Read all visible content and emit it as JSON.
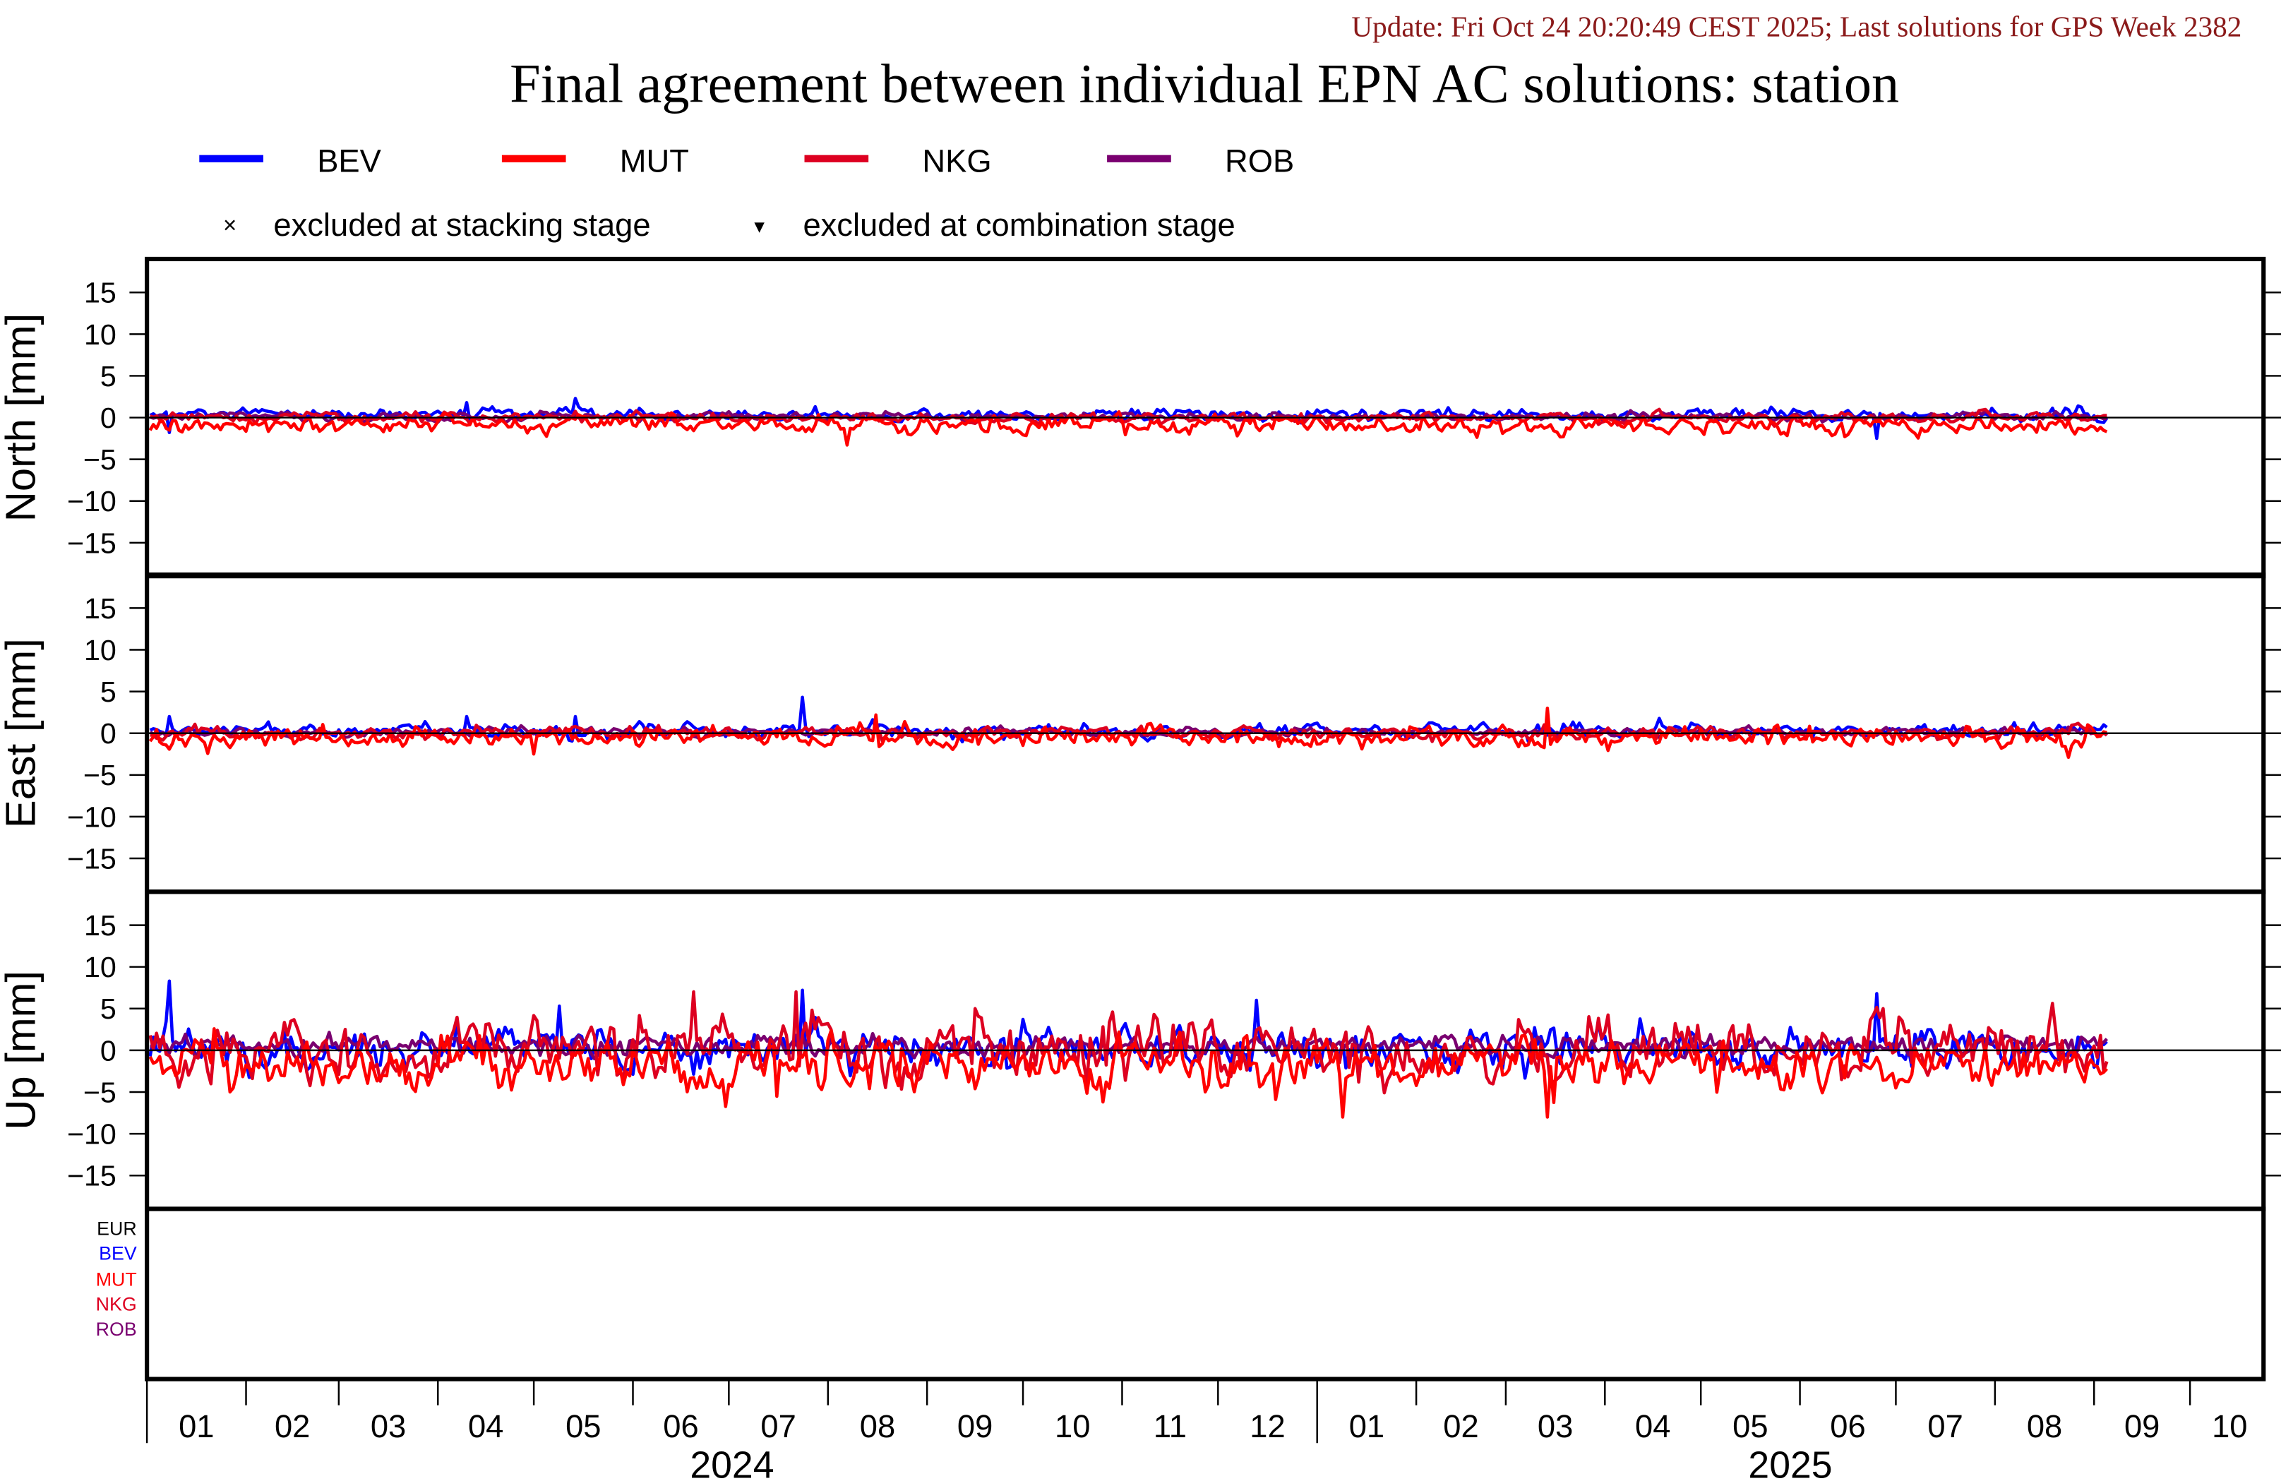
{
  "header": {
    "update_text": "Update: Fri Oct 24 20:20:49 CEST 2025; Last solutions for GPS Week 2382",
    "title": "Final agreement between individual EPN AC solutions: station"
  },
  "legend": {
    "series": [
      {
        "name": "BEV",
        "color": "#0000ff"
      },
      {
        "name": "MUT",
        "color": "#ff0000"
      },
      {
        "name": "NKG",
        "color": "#dd0020"
      },
      {
        "name": "ROB",
        "color": "#7a0070"
      }
    ],
    "markers": [
      {
        "symbol": "×",
        "label": "excluded at stacking stage"
      },
      {
        "symbol": "▾",
        "label": "excluded at combination stage"
      }
    ]
  },
  "bottom_panel": {
    "labels": [
      {
        "text": "EUR",
        "color": "#000000"
      },
      {
        "text": "BEV",
        "color": "#0000ff"
      },
      {
        "text": "MUT",
        "color": "#ff0000"
      },
      {
        "text": "NKG",
        "color": "#dd0020"
      },
      {
        "text": "ROB",
        "color": "#7a0070"
      }
    ]
  },
  "chart_data": {
    "type": "line",
    "title": "Final agreement between individual EPN AC solutions: station",
    "x_range": [
      "2024-01-01",
      "2025-10-24"
    ],
    "data_range": [
      "2024-01-02",
      "2025-09-05"
    ],
    "x_tick_labels": [
      "01",
      "02",
      "03",
      "04",
      "05",
      "06",
      "07",
      "08",
      "09",
      "10",
      "11",
      "12",
      "01",
      "02",
      "03",
      "04",
      "05",
      "06",
      "07",
      "08",
      "09",
      "10"
    ],
    "x_year_labels": [
      "2024",
      "2025"
    ],
    "y_ticks": [
      15,
      10,
      5,
      0,
      -5,
      -10,
      -15
    ],
    "ylim": [
      -19,
      19
    ],
    "grid": false,
    "legend_position": "top-left",
    "panels": [
      {
        "name": "north",
        "ylabel": "North [mm]",
        "series": [
          {
            "name": "BEV",
            "mean": 0.3,
            "std": 0.35,
            "spikes": [
              [
                100,
                1.8
              ],
              [
                134,
                2.3
              ],
              [
                541,
                -2.5
              ],
              [
                7,
                -1.8
              ]
            ]
          },
          {
            "name": "MUT",
            "mean": -0.9,
            "std": 0.55,
            "spikes": [
              [
                219,
                -3.3
              ]
            ]
          },
          {
            "name": "NKG",
            "mean": 0.0,
            "std": 0.3,
            "spikes": []
          },
          {
            "name": "ROB",
            "mean": 0.1,
            "std": 0.25,
            "spikes": []
          }
        ]
      },
      {
        "name": "east",
        "ylabel": "East [mm]",
        "series": [
          {
            "name": "BEV",
            "mean": 0.3,
            "std": 0.4,
            "spikes": [
              [
                7,
                2.0
              ],
              [
                100,
                2.0
              ],
              [
                134,
                2.0
              ],
              [
                205,
                4.3
              ]
            ]
          },
          {
            "name": "MUT",
            "mean": -0.5,
            "std": 0.6,
            "spikes": [
              [
                438,
                3.0
              ],
              [
                121,
                -2.5
              ],
              [
                228,
                2.2
              ]
            ]
          },
          {
            "name": "NKG",
            "mean": 0.0,
            "std": 0.35,
            "spikes": []
          },
          {
            "name": "ROB",
            "mean": 0.1,
            "std": 0.25,
            "spikes": []
          }
        ]
      },
      {
        "name": "up",
        "ylabel": "Up [mm]",
        "series": [
          {
            "name": "BEV",
            "mean": 0.3,
            "std": 1.2,
            "spikes": [
              [
                7,
                8.3
              ],
              [
                129,
                5.3
              ],
              [
                205,
                7.2
              ],
              [
                347,
                6.0
              ],
              [
                541,
                6.8
              ]
            ]
          },
          {
            "name": "MUT",
            "mean": -1.8,
            "std": 1.5,
            "spikes": [
              [
                374,
                -8.0
              ],
              [
                438,
                -8.0
              ],
              [
                197,
                -5.5
              ]
            ]
          },
          {
            "name": "NKG",
            "mean": 0.2,
            "std": 1.8,
            "spikes": [
              [
                171,
                7.0
              ],
              [
                203,
                7.0
              ],
              [
                259,
                5.0
              ],
              [
                612,
                -2.5
              ]
            ]
          },
          {
            "name": "ROB",
            "mean": 0.5,
            "std": 0.6,
            "spikes": []
          }
        ]
      }
    ]
  }
}
